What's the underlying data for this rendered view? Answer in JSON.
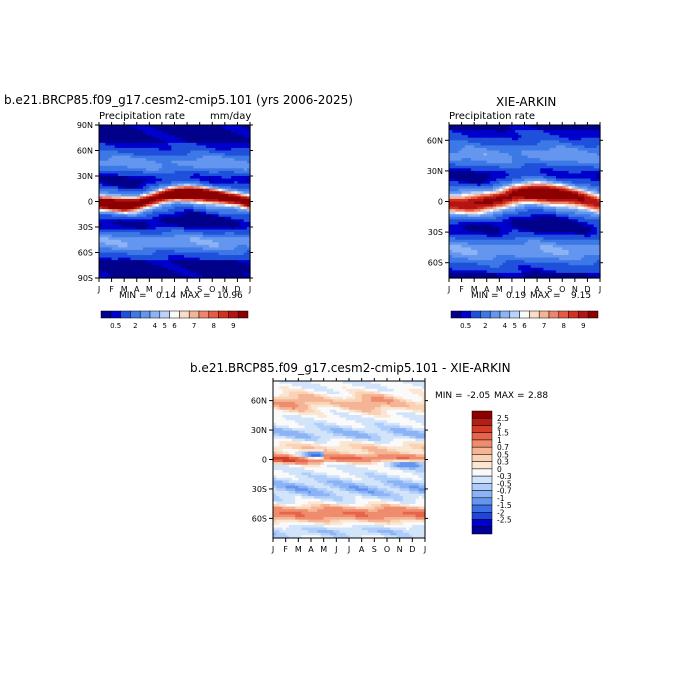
{
  "colors": {
    "abs": [
      "#00008b",
      "#0000cd",
      "#1e50dc",
      "#3c78e6",
      "#6496f0",
      "#8cb4f5",
      "#b9d3fa",
      "#fafafa",
      "#fadcc8",
      "#f5b496",
      "#f0826e",
      "#e65a46",
      "#d2321e",
      "#b41414",
      "#8c0000"
    ],
    "diff": [
      "#000096",
      "#0000c8",
      "#1e46dc",
      "#3c6ee6",
      "#6496f0",
      "#8cb4f5",
      "#afcdfa",
      "#d2e4fa",
      "#fafafa",
      "#fae6d2",
      "#fad2b4",
      "#f5b496",
      "#f08c6e",
      "#e6644b",
      "#d23c28",
      "#b41e14",
      "#8c0000"
    ],
    "label_bg": "#ffffff"
  },
  "panels": [
    {
      "title": "b.e21.BRCP85.f09_g17.cesm2-cmip5.101 (yrs 2006-2025)",
      "left_label": "Precipitation rate",
      "right_label": "mm/day",
      "min_text": "MIN =",
      "min_value": "0.14",
      "max_text": "MAX =",
      "max_value": "10.96"
    },
    {
      "title": "XIE-ARKIN",
      "left_label": "Precipitation rate",
      "right_label": "",
      "min_text": "MIN =",
      "min_value": "0.19",
      "max_text": "MAX =",
      "max_value": "9.15"
    },
    {
      "title": "b.e21.BRCP85.f09_g17.cesm2-cmip5.101 - XIE-ARKIN",
      "min_text": "MIN =",
      "min_value": "-2.05",
      "max_text": "MAX =",
      "max_value": "2.88"
    }
  ],
  "chart_data": [
    {
      "type": "heatmap",
      "title": "b.e21.BRCP85.f09_g17.cesm2-cmip5.101 (yrs 2006-2025)",
      "subtitle_left": "Precipitation rate",
      "subtitle_right": "mm/day",
      "x_ticks": [
        "J",
        "F",
        "M",
        "A",
        "M",
        "J",
        "J",
        "A",
        "S",
        "O",
        "N",
        "D",
        "J"
      ],
      "y_ticks": [
        "90N",
        "60N",
        "30N",
        "0",
        "30S",
        "60S",
        "90S"
      ],
      "ylim": [
        -90,
        90
      ],
      "colorbar_levels": [
        "0.5",
        "2",
        "4",
        "5",
        "6",
        "7",
        "8",
        "9"
      ],
      "min": 0.14,
      "max": 10.96,
      "itcz_lat_by_month": [
        -2,
        -3,
        -4,
        -3,
        2,
        6,
        9,
        10,
        9,
        7,
        5,
        3,
        -1
      ],
      "itcz_peak_mmday": [
        9.5,
        9.8,
        10.0,
        8.5,
        8.5,
        9.0,
        10.0,
        10.96,
        10.5,
        10.0,
        9.0,
        8.5,
        9.5
      ]
    },
    {
      "type": "heatmap",
      "title": "XIE-ARKIN",
      "subtitle_left": "Precipitation rate",
      "x_ticks": [
        "J",
        "F",
        "M",
        "A",
        "M",
        "J",
        "J",
        "A",
        "S",
        "O",
        "N",
        "D",
        "J"
      ],
      "y_ticks": [
        "60N",
        "30N",
        "0",
        "30S",
        "60S"
      ],
      "ylim": [
        -75,
        75
      ],
      "colorbar_levels": [
        "0.5",
        "2",
        "4",
        "5",
        "6",
        "7",
        "8",
        "9"
      ],
      "min": 0.19,
      "max": 9.15,
      "itcz_lat_by_month": [
        -3,
        -3,
        -2,
        0,
        3,
        6,
        8,
        9,
        8,
        7,
        5,
        2,
        -2
      ],
      "itcz_peak_mmday": [
        7.0,
        7.0,
        7.5,
        7.5,
        8.0,
        8.5,
        8.8,
        9.15,
        9.0,
        8.5,
        8.0,
        7.5,
        7.0
      ]
    },
    {
      "type": "heatmap",
      "title": "b.e21.BRCP85.f09_g17.cesm2-cmip5.101 - XIE-ARKIN",
      "x_ticks": [
        "J",
        "F",
        "M",
        "A",
        "M",
        "J",
        "J",
        "A",
        "S",
        "O",
        "N",
        "D",
        "J"
      ],
      "y_ticks": [
        "60N",
        "30N",
        "0",
        "30S",
        "60S"
      ],
      "ylim": [
        -80,
        80
      ],
      "colorbar_levels": [
        "2.5",
        "2",
        "1.5",
        "1",
        "0.7",
        "0.5",
        "0.3",
        "0",
        "-0.3",
        "-0.5",
        "-0.7",
        "-1",
        "-1.5",
        "-2",
        "-2.5"
      ],
      "min": -2.05,
      "max": 2.88
    }
  ]
}
